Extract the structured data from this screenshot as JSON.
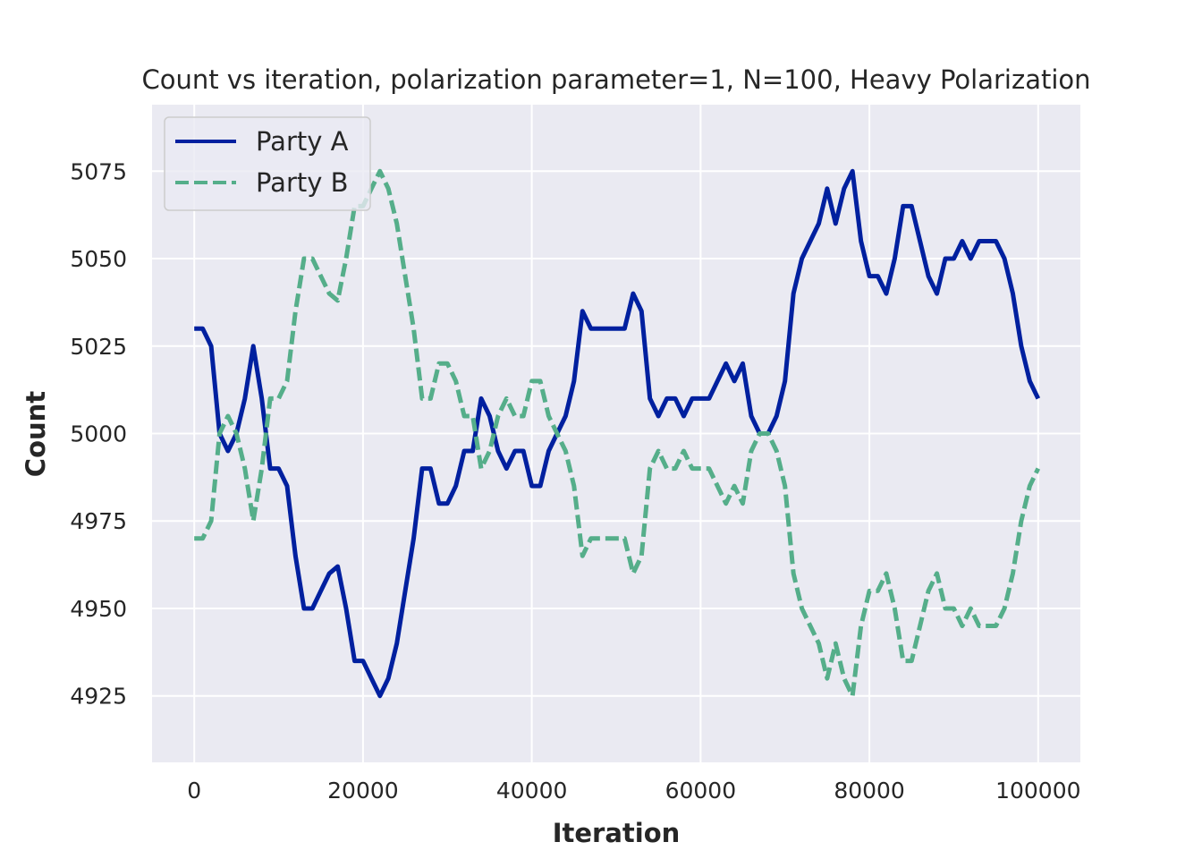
{
  "chart_data": {
    "type": "line",
    "title": "Count vs iteration, polarization parameter=1, N=100, Heavy Polarization",
    "xlabel": "Iteration",
    "ylabel": "Count",
    "xlim": [
      -5000,
      105000
    ],
    "ylim": [
      4906,
      5094
    ],
    "xticks": [
      0,
      20000,
      40000,
      60000,
      80000,
      100000
    ],
    "xtick_labels": [
      "0",
      "20000",
      "40000",
      "60000",
      "80000",
      "100000"
    ],
    "yticks": [
      4925,
      4950,
      4975,
      5000,
      5025,
      5050,
      5075
    ],
    "ytick_labels": [
      "4925",
      "4950",
      "4975",
      "5000",
      "5025",
      "5050",
      "5075"
    ],
    "grid": true,
    "legend_position": "top-left",
    "x_start": 0,
    "x_step": 1000,
    "series": [
      {
        "name": "Party A",
        "color": "#00209f",
        "style": "solid",
        "values": [
          5030,
          5030,
          5025,
          5000,
          4995,
          5000,
          5010,
          5025,
          5010,
          4990,
          4990,
          4985,
          4965,
          4950,
          4950,
          4955,
          4960,
          4962,
          4950,
          4935,
          4935,
          4930,
          4925,
          4930,
          4940,
          4955,
          4970,
          4990,
          4990,
          4980,
          4980,
          4985,
          4995,
          4995,
          5010,
          5005,
          4995,
          4990,
          4995,
          4995,
          4985,
          4985,
          4995,
          5000,
          5005,
          5015,
          5035,
          5030,
          5030,
          5030,
          5030,
          5030,
          5040,
          5035,
          5010,
          5005,
          5010,
          5010,
          5005,
          5010,
          5010,
          5010,
          5015,
          5020,
          5015,
          5020,
          5005,
          5000,
          5000,
          5005,
          5015,
          5040,
          5050,
          5055,
          5060,
          5070,
          5060,
          5070,
          5075,
          5055,
          5045,
          5045,
          5040,
          5050,
          5065,
          5065,
          5055,
          5045,
          5040,
          5050,
          5050,
          5055,
          5050,
          5055,
          5055,
          5055,
          5050,
          5040,
          5025,
          5015,
          5010
        ]
      },
      {
        "name": "Party B",
        "color": "#55ae8a",
        "style": "dashed",
        "values": [
          4970,
          4970,
          4975,
          5000,
          5005,
          5000,
          4990,
          4975,
          4990,
          5010,
          5010,
          5015,
          5035,
          5050,
          5050,
          5045,
          5040,
          5038,
          5050,
          5065,
          5065,
          5070,
          5075,
          5070,
          5060,
          5045,
          5030,
          5010,
          5010,
          5020,
          5020,
          5015,
          5005,
          5005,
          4990,
          4995,
          5005,
          5010,
          5005,
          5005,
          5015,
          5015,
          5005,
          5000,
          4995,
          4985,
          4965,
          4970,
          4970,
          4970,
          4970,
          4970,
          4960,
          4965,
          4990,
          4995,
          4990,
          4990,
          4995,
          4990,
          4990,
          4990,
          4985,
          4980,
          4985,
          4980,
          4995,
          5000,
          5000,
          4995,
          4985,
          4960,
          4950,
          4945,
          4940,
          4930,
          4940,
          4930,
          4925,
          4945,
          4955,
          4955,
          4960,
          4950,
          4935,
          4935,
          4945,
          4955,
          4960,
          4950,
          4950,
          4945,
          4950,
          4945,
          4945,
          4945,
          4950,
          4960,
          4975,
          4985,
          4990
        ]
      }
    ]
  }
}
